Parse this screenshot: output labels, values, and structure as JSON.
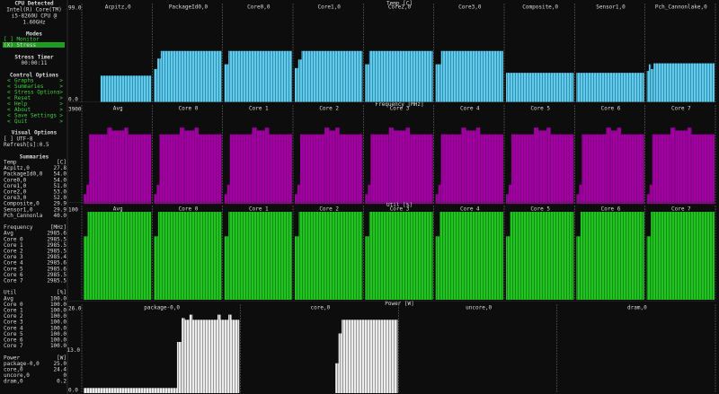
{
  "sidebar": {
    "cpu": {
      "title": "CPU Detected",
      "lines": [
        "Intel(R) Core(TM)",
        "i5-8260U CPU @",
        "1.60GHz"
      ]
    },
    "modes": {
      "title": "Modes",
      "items": [
        "[ ] Monitor",
        "(X) Stress"
      ]
    },
    "stress_timer": {
      "title": "Stress Timer",
      "value": "00:00:11"
    },
    "control_options": {
      "title": "Control Options",
      "bracket_open": "<",
      "bracket_close": ">",
      "items": [
        "Graphs",
        "Summaries",
        "Stress Options",
        "Reset",
        "Help",
        "About",
        "Save Settings",
        "Quit"
      ]
    },
    "visual_options": {
      "title": "Visual Options",
      "items": [
        "[ ] UTF-8",
        "Refresh[s]:0.5"
      ]
    },
    "summaries": {
      "title": "Summaries",
      "groups": [
        {
          "name": "Temp",
          "unit": "[C]",
          "rows": [
            [
              "Acpitz,0",
              "27.8"
            ],
            [
              "PackageId0,0",
              "54.0"
            ],
            [
              "Core0,0",
              "54.0"
            ],
            [
              "Core1,0",
              "51.0"
            ],
            [
              "Core2,0",
              "53.0"
            ],
            [
              "Core3,0",
              "52.0"
            ],
            [
              "Composite,0",
              "29.9"
            ],
            [
              "Sensor1,0",
              "29.9"
            ],
            [
              "Pch_Cannonla",
              "40.0"
            ]
          ]
        },
        {
          "name": "Frequency",
          "unit": "[MHz]",
          "rows": [
            [
              "Avg",
              "2985.6"
            ],
            [
              "Core 0",
              "2985.5"
            ],
            [
              "Core 1",
              "2985.5"
            ],
            [
              "Core 2",
              "2985.5"
            ],
            [
              "Core 3",
              "2985.4"
            ],
            [
              "Core 4",
              "2985.6"
            ],
            [
              "Core 5",
              "2985.6"
            ],
            [
              "Core 6",
              "2985.5"
            ],
            [
              "Core 7",
              "2985.5"
            ]
          ]
        },
        {
          "name": "Util",
          "unit": "[%]",
          "rows": [
            [
              "Avg",
              "100.0"
            ],
            [
              "Core 0",
              "100.0"
            ],
            [
              "Core 1",
              "100.0"
            ],
            [
              "Core 2",
              "100.0"
            ],
            [
              "Core 3",
              "100.0"
            ],
            [
              "Core 4",
              "100.0"
            ],
            [
              "Core 5",
              "100.0"
            ],
            [
              "Core 6",
              "100.0"
            ],
            [
              "Core 7",
              "100.0"
            ]
          ]
        },
        {
          "name": "Power",
          "unit": "[W]",
          "rows": [
            [
              "package-0,0",
              "25.0"
            ],
            [
              "core,0",
              "24.4"
            ],
            [
              "uncore,0",
              "0"
            ],
            [
              "dram,0",
              "0.2"
            ]
          ]
        }
      ]
    }
  },
  "graphs": [
    {
      "title": "Temp [C]",
      "top": "99.0",
      "bottom": "0.0",
      "panels": [
        "Acpitz,0",
        "PackageId0,0",
        "Core0,0",
        "Core1,0",
        "Core2,0",
        "Core3,0",
        "Composite,0",
        "Sensor1,0",
        "Pch_Cannonlake,0"
      ]
    },
    {
      "title": "Frequency [MHz]",
      "top": "3900",
      "panels": [
        "Avg",
        "Core 0",
        "Core 1",
        "Core 2",
        "Core 3",
        "Core 4",
        "Core 5",
        "Core 6",
        "Core 7"
      ]
    },
    {
      "title": "Util [%]",
      "top": "100",
      "panels": [
        "Avg",
        "Core 0",
        "Core 1",
        "Core 2",
        "Core 3",
        "Core 4",
        "Core 5",
        "Core 6",
        "Core 7"
      ]
    },
    {
      "title": "Power [W]",
      "top": "26.0",
      "middle": "13.0",
      "bottom": "0.0",
      "panels": [
        "package-0,0",
        "core,0",
        "uncore,0",
        "dram,0"
      ]
    }
  ]
}
